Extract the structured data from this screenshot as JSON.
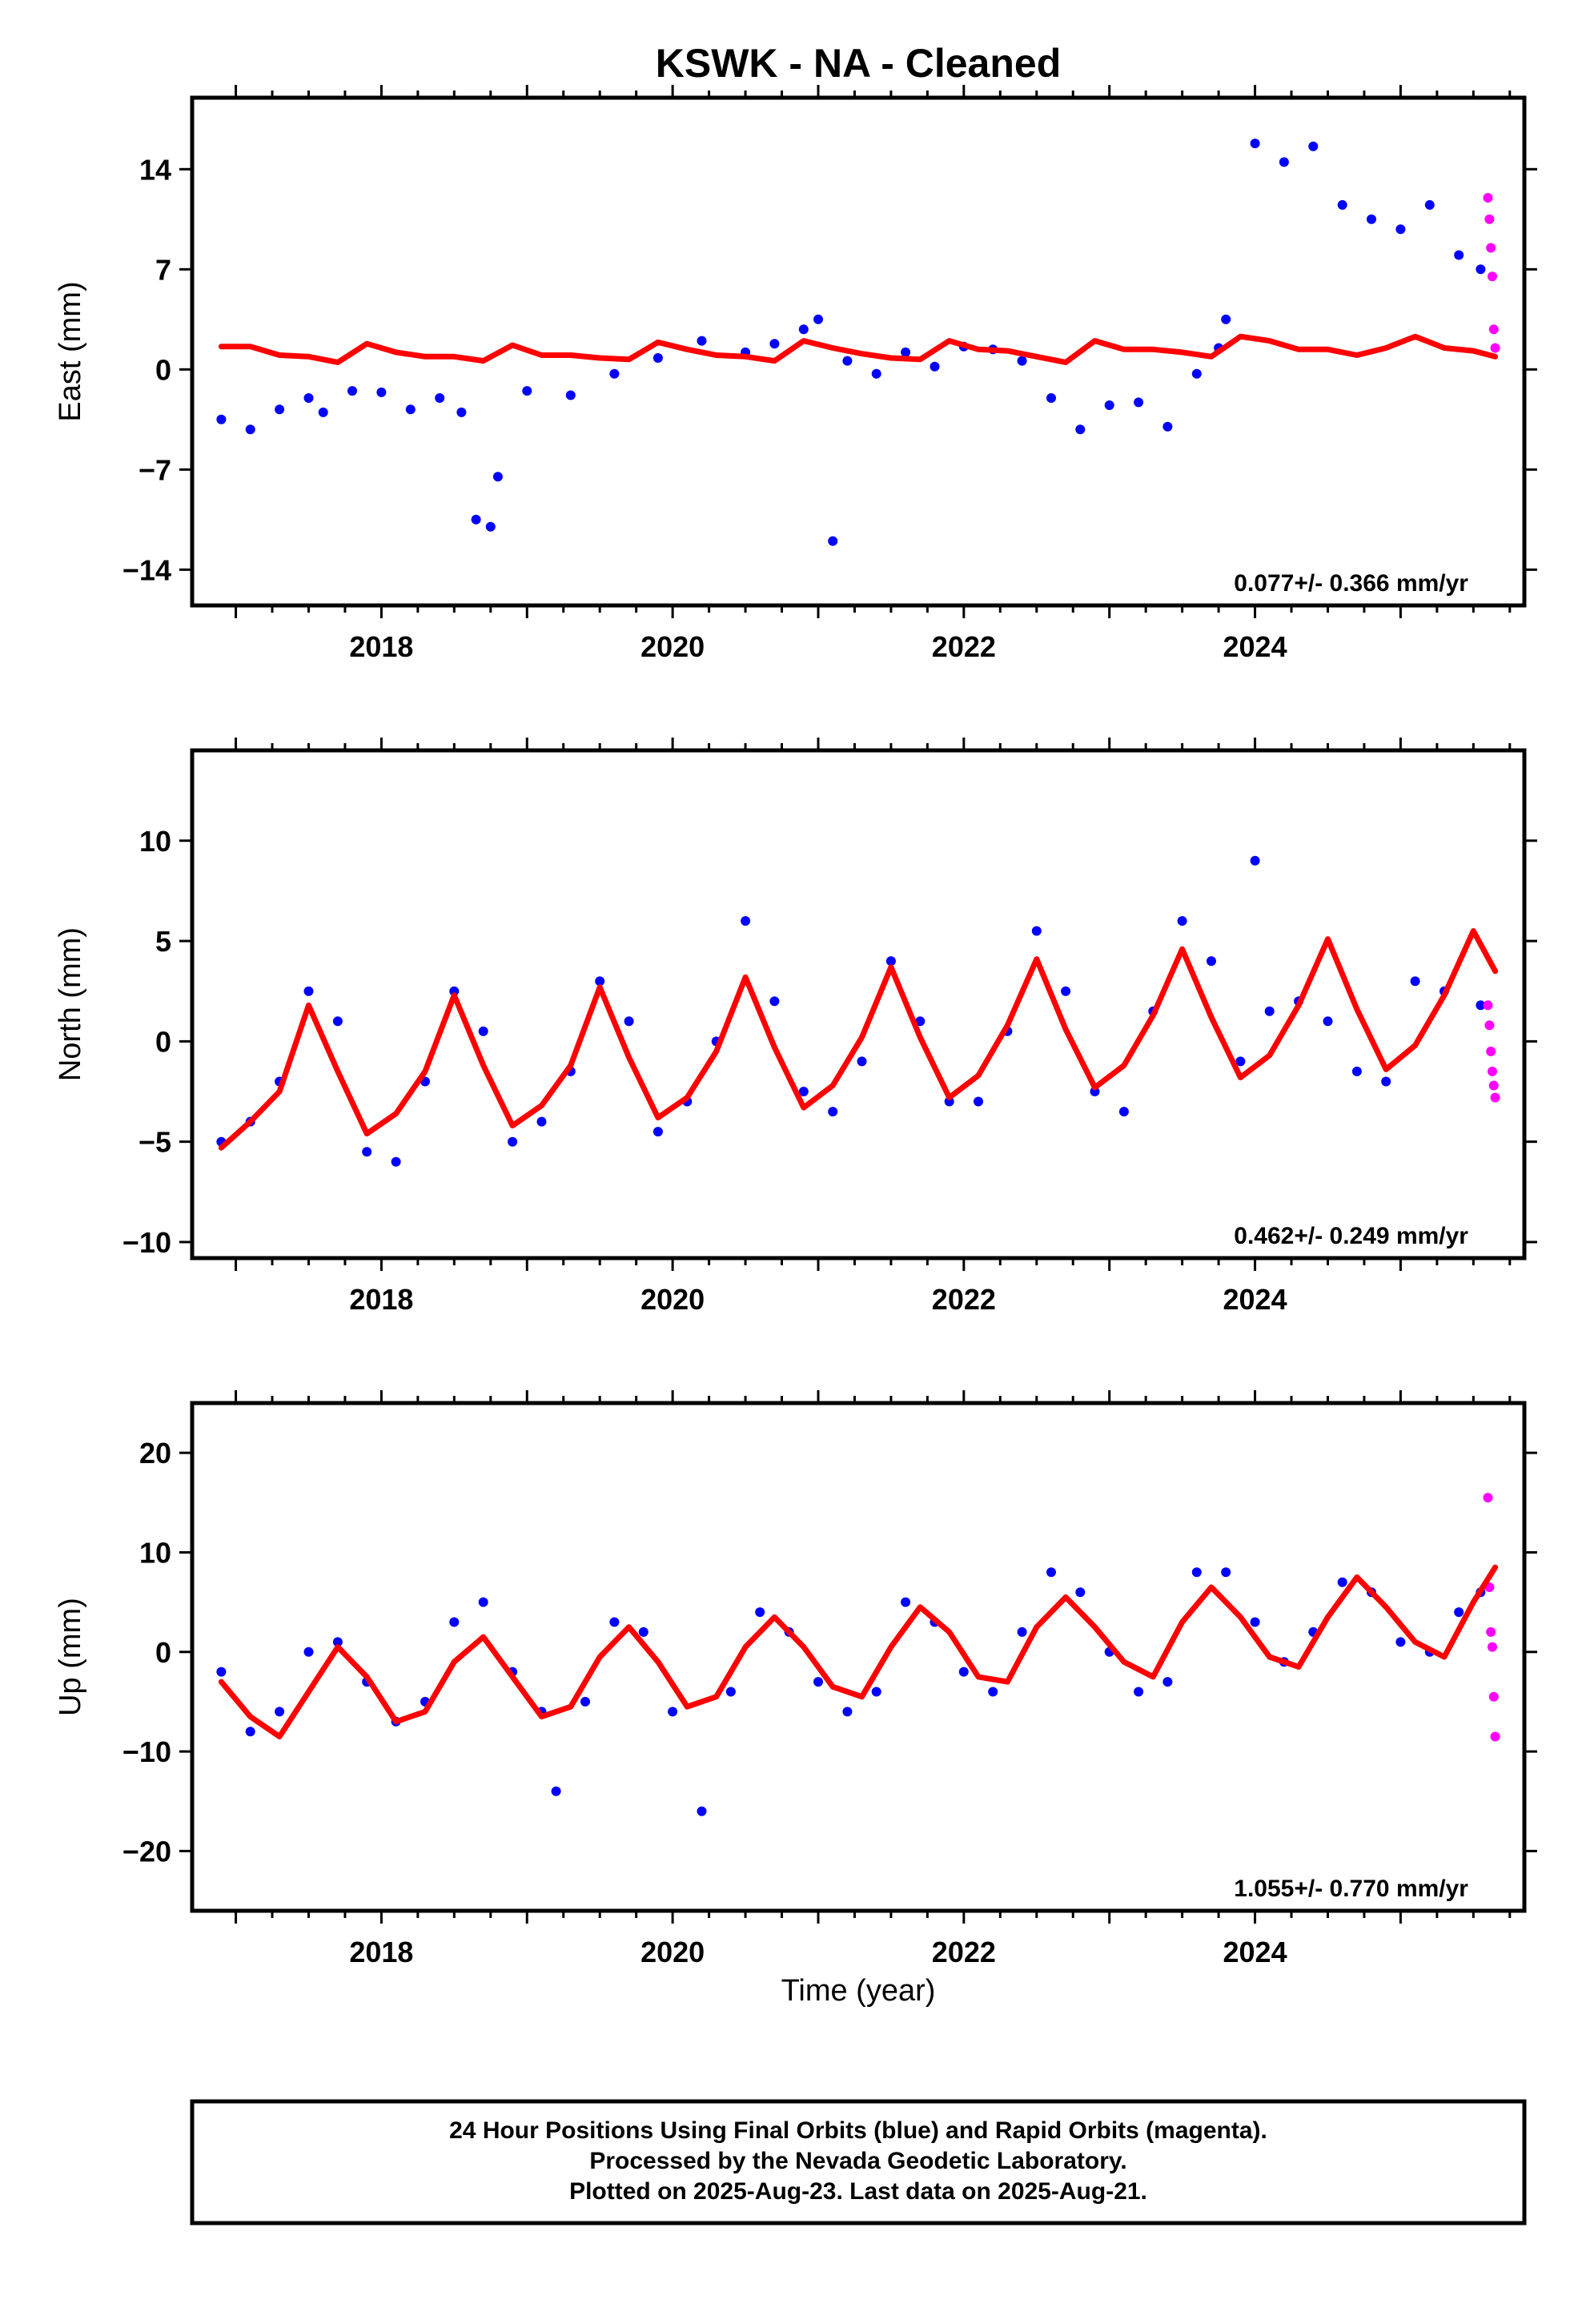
{
  "title": "KSWK  - NA - Cleaned",
  "colors": {
    "final": "#0000ff",
    "rapid": "#ff00ff",
    "model": "#ff0000",
    "frame": "#000000"
  },
  "xlabel": "Time (year)",
  "footer": {
    "line1": "24 Hour Positions Using Final Orbits (blue) and Rapid Orbits (magenta).",
    "line2": "Processed by the Nevada Geodetic Laboratory.",
    "line3": "Plotted on 2025-Aug-23. Last data on 2025-Aug-21."
  },
  "chart_data": [
    {
      "type": "scatter",
      "ylabel": "East (mm)",
      "xlim": [
        2016.7,
        2025.85
      ],
      "ylim": [
        -16.5,
        19.0
      ],
      "yticks": [
        -14,
        -7,
        0,
        7,
        14
      ],
      "xticks": [
        2018,
        2020,
        2022,
        2024
      ],
      "xtick_labels": [
        "2018",
        "2020",
        "2022",
        "2024"
      ],
      "ytick_labels": [
        "-14",
        "-7",
        "0",
        "7",
        "14"
      ],
      "rate": "0.077+/- 0.366 mm/yr",
      "grid": false,
      "series": [
        {
          "name": "Final Orbits (blue)",
          "color": "#0000ff",
          "x": [
            2016.9,
            2017.1,
            2017.3,
            2017.5,
            2017.6,
            2017.8,
            2018.0,
            2018.2,
            2018.4,
            2018.55,
            2018.65,
            2018.75,
            2018.8,
            2019.0,
            2019.3,
            2019.6,
            2019.9,
            2020.2,
            2020.5,
            2020.7,
            2020.9,
            2021.0,
            2021.1,
            2021.2,
            2021.4,
            2021.6,
            2021.8,
            2022.0,
            2022.2,
            2022.4,
            2022.6,
            2022.8,
            2023.0,
            2023.2,
            2023.4,
            2023.6,
            2023.75,
            2023.8,
            2024.0,
            2024.2,
            2024.4,
            2024.6,
            2024.8,
            2025.0,
            2025.2,
            2025.4,
            2025.55
          ],
          "y": [
            -3.5,
            -4.2,
            -2.8,
            -2.0,
            -3.0,
            -1.5,
            -1.6,
            -2.8,
            -2.0,
            -3.0,
            -10.5,
            -11.0,
            -7.5,
            -1.5,
            -1.8,
            -0.3,
            0.8,
            2.0,
            1.2,
            1.8,
            2.8,
            3.5,
            -12.0,
            0.6,
            -0.3,
            1.2,
            0.2,
            1.6,
            1.4,
            0.6,
            -2.0,
            -4.2,
            -2.5,
            -2.3,
            -4.0,
            -0.3,
            1.5,
            3.5,
            15.8,
            14.5,
            15.6,
            11.5,
            10.5,
            9.8,
            11.5,
            8.0,
            7.0
          ]
        },
        {
          "name": "Rapid Orbits (magenta)",
          "color": "#ff00ff",
          "x": [
            2025.6,
            2025.61,
            2025.62,
            2025.63,
            2025.64,
            2025.65
          ],
          "y": [
            12.0,
            10.5,
            8.5,
            6.5,
            2.8,
            1.5
          ]
        },
        {
          "name": "model",
          "color": "#ff0000",
          "kind": "line",
          "x": [
            2016.9,
            2017.1,
            2017.3,
            2017.5,
            2017.7,
            2017.9,
            2018.1,
            2018.3,
            2018.5,
            2018.7,
            2018.9,
            2019.1,
            2019.3,
            2019.5,
            2019.7,
            2019.9,
            2020.1,
            2020.3,
            2020.5,
            2020.7,
            2020.9,
            2021.1,
            2021.3,
            2021.5,
            2021.7,
            2021.9,
            2022.1,
            2022.3,
            2022.5,
            2022.7,
            2022.9,
            2023.1,
            2023.3,
            2023.5,
            2023.7,
            2023.9,
            2024.1,
            2024.3,
            2024.5,
            2024.7,
            2024.9,
            2025.1,
            2025.3,
            2025.5,
            2025.65
          ],
          "y": [
            1.6,
            1.6,
            1.0,
            0.9,
            0.5,
            1.8,
            1.2,
            0.9,
            0.9,
            0.6,
            1.7,
            1.0,
            1.0,
            0.8,
            0.7,
            1.9,
            1.4,
            1.0,
            0.9,
            0.6,
            2.0,
            1.5,
            1.1,
            0.8,
            0.7,
            2.0,
            1.4,
            1.3,
            0.9,
            0.5,
            2.0,
            1.4,
            1.4,
            1.2,
            0.9,
            2.3,
            2.0,
            1.4,
            1.4,
            1.0,
            1.5,
            2.3,
            1.5,
            1.3,
            0.9
          ]
        }
      ]
    },
    {
      "type": "scatter",
      "ylabel": "North (mm)",
      "xlim": [
        2016.7,
        2025.85
      ],
      "ylim": [
        -10.8,
        14.5
      ],
      "yticks": [
        -10,
        -5,
        0,
        5,
        10
      ],
      "xticks": [
        2018,
        2020,
        2022,
        2024
      ],
      "xtick_labels": [
        "2018",
        "2020",
        "2022",
        "2024"
      ],
      "ytick_labels": [
        "-10",
        "-5",
        "0",
        "5",
        "10"
      ],
      "rate": "0.462+/- 0.249 mm/yr",
      "grid": false,
      "series": [
        {
          "name": "Final Orbits (blue)",
          "color": "#0000ff",
          "x": [
            2016.9,
            2017.1,
            2017.3,
            2017.5,
            2017.7,
            2017.9,
            2018.1,
            2018.3,
            2018.5,
            2018.7,
            2018.9,
            2019.1,
            2019.3,
            2019.5,
            2019.7,
            2019.9,
            2020.1,
            2020.3,
            2020.5,
            2020.7,
            2020.9,
            2021.1,
            2021.3,
            2021.5,
            2021.7,
            2021.9,
            2022.1,
            2022.3,
            2022.5,
            2022.7,
            2022.9,
            2023.1,
            2023.3,
            2023.5,
            2023.7,
            2023.9,
            2024.0,
            2024.1,
            2024.3,
            2024.5,
            2024.7,
            2024.9,
            2025.1,
            2025.3,
            2025.55
          ],
          "y": [
            -5.0,
            -4.0,
            -2.0,
            2.5,
            1.0,
            -5.5,
            -6.0,
            -2.0,
            2.5,
            0.5,
            -5.0,
            -4.0,
            -1.5,
            3.0,
            1.0,
            -4.5,
            -3.0,
            0.0,
            6.0,
            2.0,
            -2.5,
            -3.5,
            -1.0,
            4.0,
            1.0,
            -3.0,
            -3.0,
            0.5,
            5.5,
            2.5,
            -2.5,
            -3.5,
            1.5,
            6.0,
            4.0,
            -1.0,
            9.0,
            1.5,
            2.0,
            1.0,
            -1.5,
            -2.0,
            3.0,
            2.5,
            1.8
          ]
        },
        {
          "name": "Rapid Orbits (magenta)",
          "color": "#ff00ff",
          "x": [
            2025.6,
            2025.61,
            2025.62,
            2025.63,
            2025.64,
            2025.65
          ],
          "y": [
            1.8,
            0.8,
            -0.5,
            -1.5,
            -2.2,
            -2.8
          ]
        },
        {
          "name": "model",
          "color": "#ff0000",
          "kind": "line",
          "x": [
            2016.9,
            2017.1,
            2017.3,
            2017.5,
            2017.7,
            2017.9,
            2018.1,
            2018.3,
            2018.5,
            2018.7,
            2018.9,
            2019.1,
            2019.3,
            2019.5,
            2019.7,
            2019.9,
            2020.1,
            2020.3,
            2020.5,
            2020.7,
            2020.9,
            2021.1,
            2021.3,
            2021.5,
            2021.7,
            2021.9,
            2022.1,
            2022.3,
            2022.5,
            2022.7,
            2022.9,
            2023.1,
            2023.3,
            2023.5,
            2023.7,
            2023.9,
            2024.1,
            2024.3,
            2024.5,
            2024.7,
            2024.9,
            2025.1,
            2025.3,
            2025.5,
            2025.65
          ],
          "y": [
            -5.3,
            -4.0,
            -2.5,
            1.8,
            -1.5,
            -4.6,
            -3.6,
            -1.5,
            2.3,
            -1.2,
            -4.2,
            -3.2,
            -1.2,
            2.7,
            -0.8,
            -3.8,
            -2.8,
            -0.5,
            3.2,
            -0.3,
            -3.3,
            -2.2,
            0.2,
            3.7,
            0.2,
            -2.8,
            -1.7,
            0.8,
            4.1,
            0.6,
            -2.3,
            -1.2,
            1.3,
            4.6,
            1.2,
            -1.8,
            -0.7,
            1.8,
            5.1,
            1.6,
            -1.4,
            -0.2,
            2.3,
            5.5,
            3.5
          ]
        }
      ]
    },
    {
      "type": "scatter",
      "ylabel": "Up (mm)",
      "xlim": [
        2016.7,
        2025.85
      ],
      "ylim": [
        -26.0,
        25.0
      ],
      "yticks": [
        -20,
        -10,
        0,
        10,
        20
      ],
      "xticks": [
        2018,
        2020,
        2022,
        2024
      ],
      "xtick_labels": [
        "2018",
        "2020",
        "2022",
        "2024"
      ],
      "ytick_labels": [
        "-20",
        "-10",
        "0",
        "10",
        "20"
      ],
      "rate": "1.055+/- 0.770 mm/yr",
      "grid": false,
      "series": [
        {
          "name": "Final Orbits (blue)",
          "color": "#0000ff",
          "x": [
            2016.9,
            2017.1,
            2017.3,
            2017.5,
            2017.7,
            2017.9,
            2018.1,
            2018.3,
            2018.5,
            2018.7,
            2018.9,
            2019.1,
            2019.2,
            2019.4,
            2019.6,
            2019.8,
            2020.0,
            2020.2,
            2020.4,
            2020.6,
            2020.8,
            2021.0,
            2021.2,
            2021.4,
            2021.6,
            2021.8,
            2022.0,
            2022.2,
            2022.4,
            2022.6,
            2022.8,
            2023.0,
            2023.2,
            2023.4,
            2023.6,
            2023.8,
            2024.0,
            2024.2,
            2024.4,
            2024.6,
            2024.8,
            2025.0,
            2025.2,
            2025.4,
            2025.55
          ],
          "y": [
            -2.0,
            -8.0,
            -6.0,
            0.0,
            1.0,
            -3.0,
            -7.0,
            -5.0,
            3.0,
            5.0,
            -2.0,
            -6.0,
            -14.0,
            -5.0,
            3.0,
            2.0,
            -6.0,
            -16.0,
            -4.0,
            4.0,
            2.0,
            -3.0,
            -6.0,
            -4.0,
            5.0,
            3.0,
            -2.0,
            -4.0,
            2.0,
            8.0,
            6.0,
            0.0,
            -4.0,
            -3.0,
            8.0,
            8.0,
            3.0,
            -1.0,
            2.0,
            7.0,
            6.0,
            1.0,
            0.0,
            4.0,
            6.0
          ]
        },
        {
          "name": "Rapid Orbits (magenta)",
          "color": "#ff00ff",
          "x": [
            2025.6,
            2025.61,
            2025.62,
            2025.63,
            2025.64,
            2025.65
          ],
          "y": [
            15.5,
            6.5,
            2.0,
            0.5,
            -4.5,
            -8.5
          ]
        },
        {
          "name": "model",
          "color": "#ff0000",
          "kind": "line",
          "x": [
            2016.9,
            2017.1,
            2017.3,
            2017.5,
            2017.7,
            2017.9,
            2018.1,
            2018.3,
            2018.5,
            2018.7,
            2018.9,
            2019.1,
            2019.3,
            2019.5,
            2019.7,
            2019.9,
            2020.1,
            2020.3,
            2020.5,
            2020.7,
            2020.9,
            2021.1,
            2021.3,
            2021.5,
            2021.7,
            2021.9,
            2022.1,
            2022.3,
            2022.5,
            2022.7,
            2022.9,
            2023.1,
            2023.3,
            2023.5,
            2023.7,
            2023.9,
            2024.1,
            2024.3,
            2024.5,
            2024.7,
            2024.9,
            2025.1,
            2025.3,
            2025.5,
            2025.65
          ],
          "y": [
            -3.0,
            -6.5,
            -8.5,
            -4.0,
            0.5,
            -2.5,
            -7.0,
            -6.0,
            -1.0,
            1.5,
            -2.5,
            -6.5,
            -5.5,
            -0.5,
            2.5,
            -1.0,
            -5.5,
            -4.5,
            0.5,
            3.5,
            0.5,
            -3.5,
            -4.5,
            0.5,
            4.5,
            2.0,
            -2.5,
            -3.0,
            2.5,
            5.5,
            2.5,
            -1.0,
            -2.5,
            3.0,
            6.5,
            3.5,
            -0.5,
            -1.5,
            3.5,
            7.5,
            4.5,
            1.0,
            -0.5,
            5.0,
            8.5
          ]
        }
      ]
    }
  ]
}
